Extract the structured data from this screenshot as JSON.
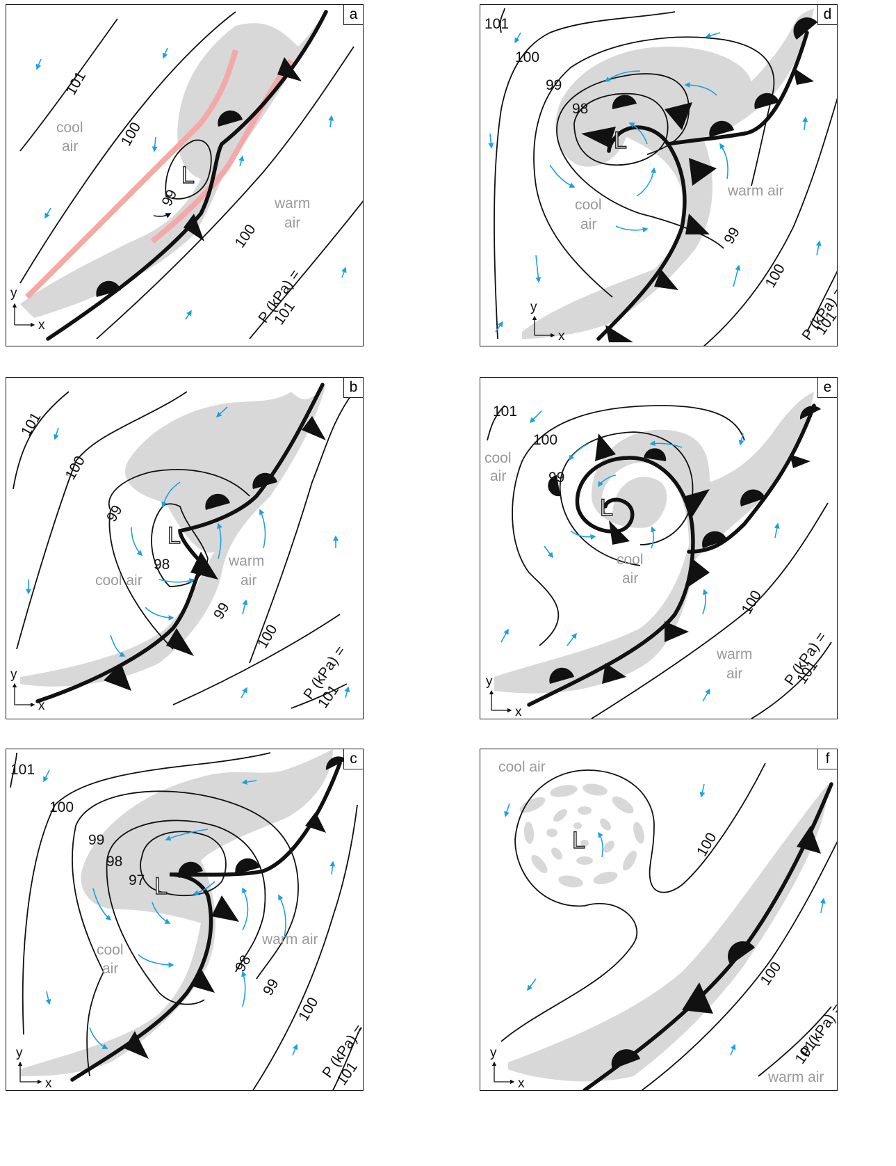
{
  "colors": {
    "wind_arrow": "#1ba1e2",
    "shading": "#d8d8d8",
    "jet_stream": "#f4a9a9",
    "front": "#111111"
  },
  "panels": {
    "a": {
      "letter": "a",
      "isobars": [
        "101",
        "100",
        "99",
        "100",
        "P (kPa) =",
        "101"
      ],
      "labels": [
        "cool",
        "air",
        "warm",
        "air"
      ],
      "low": "L",
      "axes": {
        "x": "x",
        "y": "y"
      }
    },
    "b": {
      "letter": "b",
      "isobars": [
        "101",
        "100",
        "99",
        "98",
        "99",
        "100",
        "P (kPa) =",
        "101"
      ],
      "labels": [
        "cool air",
        "warm",
        "air"
      ],
      "low": "L",
      "axes": {
        "x": "x",
        "y": "y"
      }
    },
    "c": {
      "letter": "c",
      "isobars": [
        "101",
        "100",
        "99",
        "98",
        "97",
        "98",
        "99",
        "100",
        "P (kPa) =",
        "101"
      ],
      "labels": [
        "cool",
        "air",
        "warm air"
      ],
      "low": "L",
      "axes": {
        "x": "x",
        "y": "y"
      }
    },
    "d": {
      "letter": "d",
      "isobars": [
        "101",
        "100",
        "99",
        "98",
        "99",
        "100",
        "P (kPa) =",
        "101"
      ],
      "labels": [
        "cool",
        "air",
        "warm air"
      ],
      "low": "L",
      "axes": {
        "x": "x",
        "y": "y"
      }
    },
    "e": {
      "letter": "e",
      "isobars": [
        "101",
        "100",
        "99",
        "100",
        "P (kPa) =",
        "101"
      ],
      "labels": [
        "cool",
        "air",
        "cool",
        "air",
        "warm",
        "air"
      ],
      "low": "L",
      "axes": {
        "x": "x",
        "y": "y"
      }
    },
    "f": {
      "letter": "f",
      "isobars": [
        "100",
        "100",
        "P (kPa) =",
        "101"
      ],
      "labels": [
        "cool air",
        "warm air"
      ],
      "low": "L",
      "axes": {
        "x": "x",
        "y": "y"
      }
    }
  }
}
